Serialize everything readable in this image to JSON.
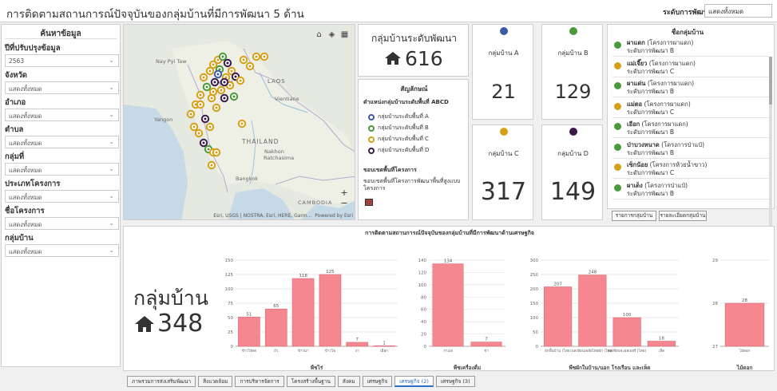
{
  "header": {
    "title": "การติดตามสถานการณ์ปัจจุบันของกลุ่มบ้านที่มีการพัฒนา 5 ด้าน",
    "level_label": "ระดับการพัฒนา",
    "level_value": "แสดงทั้งหมด"
  },
  "sidebar": {
    "title": "ค้นหาข้อมูล",
    "filters": [
      {
        "label": "ปีที่ปรับปรุงข้อมูล",
        "value": "2563"
      },
      {
        "label": "จังหวัด",
        "value": "แสดงทั้งหมด"
      },
      {
        "label": "อำเภอ",
        "value": "แสดงทั้งหมด"
      },
      {
        "label": "ตำบล",
        "value": "แสดงทั้งหมด"
      },
      {
        "label": "กลุ่มที่",
        "value": "แสดงทั้งหมด"
      },
      {
        "label": "ประเภทโครงการ",
        "value": "แสดงทั้งหมด"
      },
      {
        "label": "ชื่อโครงการ",
        "value": "แสดงทั้งหมด"
      },
      {
        "label": "กลุ่มบ้าน",
        "value": "แสดงทั้งหมด"
      }
    ]
  },
  "map": {
    "labels": {
      "nay_pyi_taw": "Nay Pyi Taw",
      "laos": "LAOS",
      "vientiane": "Vientiane",
      "yangon": "Yangon",
      "thailand": "THAILAND",
      "nakhon": "Nakhon",
      "ratchasima": "Ratchasima",
      "bangkok": "Bangkok",
      "cambodia": "CAMBODIA",
      "chiang_mai": "ang Mai"
    },
    "zoom_in": "+",
    "zoom_out": "−",
    "attribution": "Esri, USGS | NOSTRA, Esri, HERE, Garm...",
    "powered": "Powered by Esri"
  },
  "summary": {
    "label": "กลุ่มบ้านระดับพัฒนา",
    "value": "616"
  },
  "legend": {
    "title": "สัญลักษณ์",
    "subtitle": "ตำแหน่งกลุ่มบ้านระดับพื้นที่ ABCD",
    "items": [
      {
        "label": "กลุ่มบ้านระดับพื้นที่ A",
        "color": "#3b5ba5"
      },
      {
        "label": "กลุ่มบ้านระดับพื้นที่ B",
        "color": "#4a9a3a"
      },
      {
        "label": "กลุ่มบ้านระดับพื้นที่ C",
        "color": "#d4a017"
      },
      {
        "label": "กลุ่มบ้านระดับพื้นที่ D",
        "color": "#3a1a4a"
      }
    ],
    "boundary_title": "ขอบเขตพื้นที่โครงการ",
    "boundary_text": "ขอบเขตพื้นที่โครงการพัฒนาพื้นที่สูงแบบโครงการ"
  },
  "stats": [
    {
      "label": "กลุ่มบ้าน A",
      "value": "21",
      "color": "#3b5ba5"
    },
    {
      "label": "กลุ่มบ้าน B",
      "value": "129",
      "color": "#4a9a3a"
    },
    {
      "label": "กลุ่มบ้าน C",
      "value": "317",
      "color": "#d4a017"
    },
    {
      "label": "กลุ่มบ้าน D",
      "value": "149",
      "color": "#3a1a4a"
    }
  ],
  "villages": {
    "title": "ชื่อกลุ่มบ้าน",
    "items": [
      {
        "name": "ผาแดก",
        "project": "(โครงการผาแดก)",
        "level": "ระดับการพัฒนา B",
        "color": "#4a9a3a"
      },
      {
        "name": "แม่เจี๊ยว",
        "project": "(โครงการผาแดก)",
        "level": "ระดับการพัฒนา C",
        "color": "#d4a017"
      },
      {
        "name": "ผาแด่น",
        "project": "(โครงการผาแดก)",
        "level": "ระดับการพัฒนา B",
        "color": "#4a9a3a"
      },
      {
        "name": "แม่ตอ",
        "project": "(โครงการผาแดก)",
        "level": "ระดับการพัฒนา C",
        "color": "#d4a017"
      },
      {
        "name": "เอือก",
        "project": "(โครงการผาแดก)",
        "level": "ระดับการพัฒนา B",
        "color": "#4a9a3a"
      },
      {
        "name": "ป่าบวงหนาด",
        "project": "(โครงการป่าแป๋)",
        "level": "ระดับการพัฒนา B",
        "color": "#4a9a3a"
      },
      {
        "name": "เซ็กน้อย",
        "project": "(โครงการห้วยน้ำขาว)",
        "level": "ระดับการพัฒนา C",
        "color": "#d4a017"
      },
      {
        "name": "ผาเด็ง",
        "project": "(โครงการป่าแป๋)",
        "level": "ระดับการพัฒนา B",
        "color": "#4a9a3a"
      }
    ],
    "btn_list": "รายการกลุ่มบ้าน",
    "btn_detail": "รายละเอียดกลุ่มบ้าน"
  },
  "charts": {
    "title": "การติดตามสถานการณ์ปัจจุบันของกลุ่มบ้านที่มีการพัฒนาด้านเศรษฐกิจ",
    "big_label": "กลุ่มบ้าน",
    "big_value": "348"
  },
  "chart_data": [
    {
      "type": "bar",
      "xlabel": "พืชไร่",
      "categories": [
        "ข้าวไร่ดด",
        "ถั่ว",
        "ข้าวนา",
        "ข้าวโพ",
        "งา",
        "เผือก"
      ],
      "values": [
        51,
        65,
        118,
        125,
        7,
        1
      ],
      "ylim": [
        0,
        150
      ],
      "yticks": [
        0,
        25,
        50,
        75,
        100,
        125,
        150
      ]
    },
    {
      "type": "bar",
      "xlabel": "พืชเครื่องดื่ม",
      "categories": [
        "กาแฟ",
        "ชา"
      ],
      "values": [
        134,
        7
      ],
      "ylim": [
        0,
        140
      ],
      "yticks": [
        0,
        20,
        40,
        60,
        80,
        100,
        120,
        140
      ]
    },
    {
      "type": "bar",
      "xlabel": "พืชผักในบ้าน/นอก โรงเรือน และเห็ด",
      "categories": [
        "ผักพื้นบ้าน (ไทย)",
        "ผลเขียนเพลียไทยผัก (ไทย)",
        "ผลเขียนจะผลเยอรี่ (ไทย)",
        "เห็ด"
      ],
      "values": [
        207,
        248,
        100,
        18
      ],
      "ylim": [
        0,
        300
      ],
      "yticks": [
        0,
        50,
        100,
        150,
        200,
        250,
        300
      ]
    },
    {
      "type": "bar",
      "xlabel": "ไม้ดอก",
      "categories": [
        "ไม้ดอก"
      ],
      "values": [
        28
      ],
      "ylim": [
        27,
        29
      ],
      "yticks": [
        27,
        28,
        29
      ]
    }
  ],
  "tabs": [
    {
      "label": "ภาพรวมการส่งเสริมพัฒนา",
      "active": false
    },
    {
      "label": "สิ่งแวดล้อม",
      "active": false
    },
    {
      "label": "การบริหารจัดการ",
      "active": false
    },
    {
      "label": "โครงสร้างพื้นฐาน",
      "active": false
    },
    {
      "label": "สังคม",
      "active": false
    },
    {
      "label": "เศรษฐกิจ",
      "active": false
    },
    {
      "label": "เศรษฐกิจ (2)",
      "active": true
    },
    {
      "label": "เศรษฐกิจ (3)",
      "active": false
    }
  ]
}
